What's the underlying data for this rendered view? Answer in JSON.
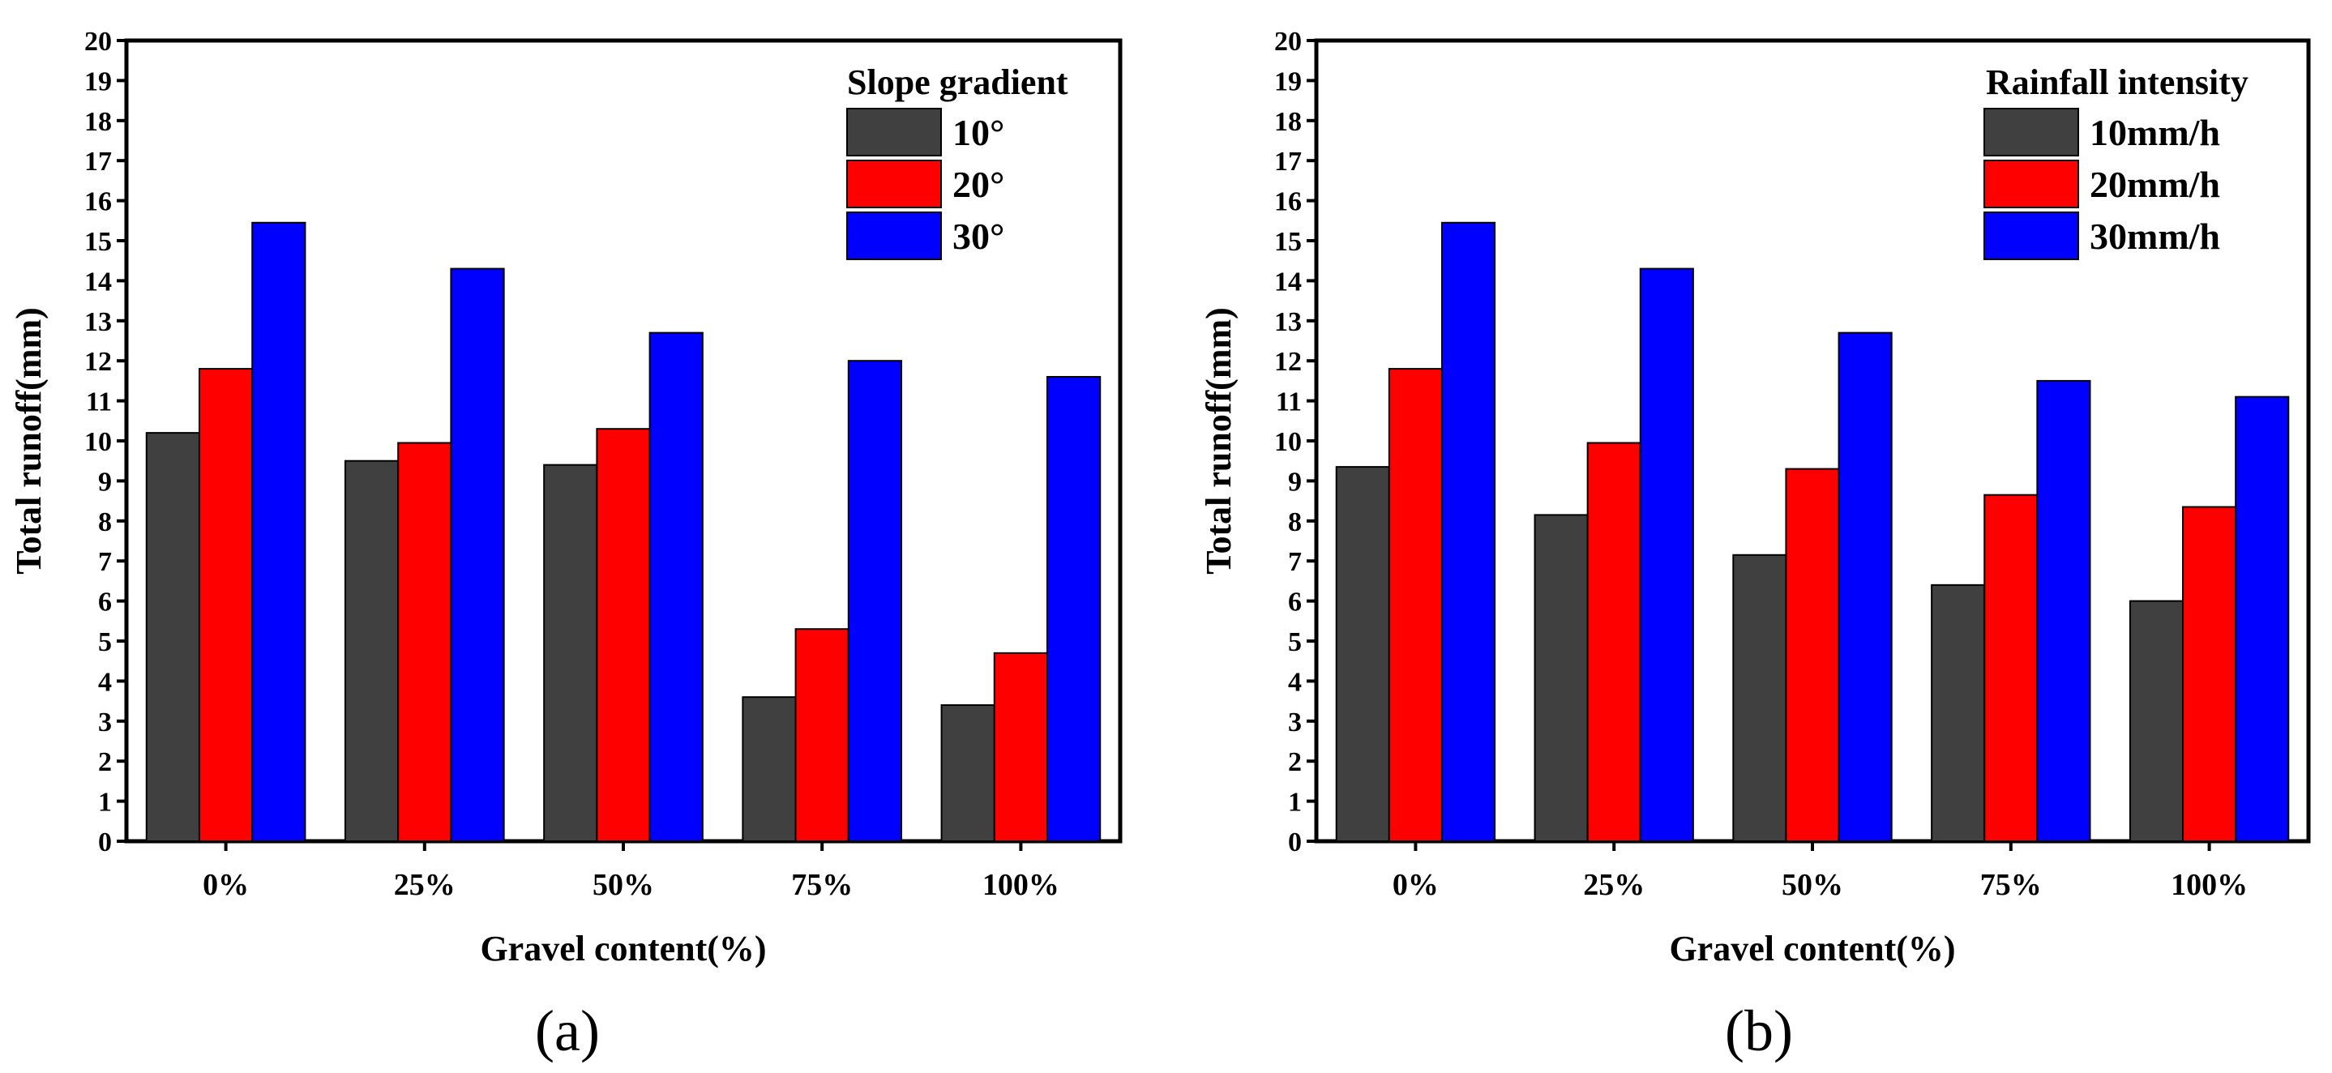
{
  "chart_data": [
    {
      "panel": "(a)",
      "type": "bar",
      "title": "",
      "xlabel": "Gravel content(%)",
      "ylabel": "Total runoff(mm)",
      "ylim": [
        0,
        20
      ],
      "yticks": [
        "0",
        "1",
        "2",
        "3",
        "4",
        "5",
        "6",
        "7",
        "8",
        "9",
        "10",
        "11",
        "12",
        "13",
        "14",
        "15",
        "16",
        "17",
        "18",
        "19",
        "20"
      ],
      "categories": [
        "0%",
        "25%",
        "50%",
        "75%",
        "100%"
      ],
      "legend_title": "Slope gradient",
      "legend_position": "top-right",
      "grid": false,
      "series": [
        {
          "name": "10°",
          "color": "#404040",
          "values": [
            10.2,
            9.5,
            9.4,
            3.6,
            3.4
          ]
        },
        {
          "name": "20°",
          "color": "#ff0000",
          "values": [
            11.8,
            9.95,
            10.3,
            5.3,
            4.7
          ]
        },
        {
          "name": "30°",
          "color": "#0000ff",
          "values": [
            15.45,
            14.3,
            12.7,
            12.0,
            11.6
          ]
        }
      ]
    },
    {
      "panel": "(b)",
      "type": "bar",
      "title": "",
      "xlabel": "Gravel content(%)",
      "ylabel": "Total runoff(mm)",
      "ylim": [
        0,
        20
      ],
      "yticks": [
        "0",
        "1",
        "2",
        "3",
        "4",
        "5",
        "6",
        "7",
        "8",
        "9",
        "10",
        "11",
        "12",
        "13",
        "14",
        "15",
        "16",
        "17",
        "18",
        "19",
        "20"
      ],
      "categories": [
        "0%",
        "25%",
        "50%",
        "75%",
        "100%"
      ],
      "legend_title": "Rainfall intensity",
      "legend_position": "top-right",
      "grid": false,
      "series": [
        {
          "name": "10mm/h",
          "color": "#404040",
          "values": [
            9.35,
            8.15,
            7.15,
            6.4,
            6.0
          ]
        },
        {
          "name": "20mm/h",
          "color": "#ff0000",
          "values": [
            11.8,
            9.95,
            9.3,
            8.65,
            8.35
          ]
        },
        {
          "name": "30mm/h",
          "color": "#0000ff",
          "values": [
            15.45,
            14.3,
            12.7,
            11.5,
            11.1
          ]
        }
      ]
    }
  ]
}
